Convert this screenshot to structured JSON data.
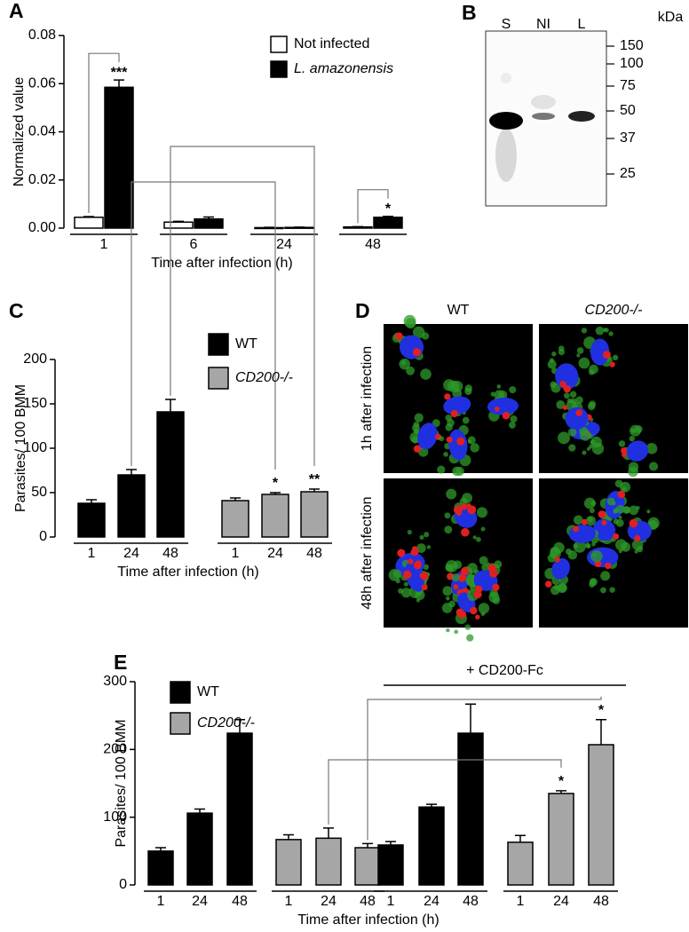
{
  "chart_data": [
    {
      "type": "bar",
      "panel_label": "A",
      "y_label": "Normalized value",
      "x_label": "Time after infection (h)",
      "categories": [
        "1",
        "6",
        "24",
        "48"
      ],
      "series": [
        {
          "name": "Not infected",
          "color": "#ffffff",
          "values": [
            0.0045,
            0.0025,
            0.0002,
            0.0005
          ],
          "errors": [
            0.0003,
            0.0003,
            0.0001,
            0.0001
          ]
        },
        {
          "name": "L. amazonensis",
          "color": "#000000",
          "values": [
            0.0585,
            0.0038,
            0.0003,
            0.0045
          ],
          "errors": [
            0.003,
            0.0008,
            0.0001,
            0.0004
          ],
          "significance": [
            "***",
            null,
            null,
            "*"
          ]
        }
      ],
      "ylim": [
        0,
        0.08
      ],
      "yticks": [
        {
          "value": 0,
          "label": "0.00"
        },
        0.02,
        0.04,
        0.06,
        0.08
      ],
      "legend_position": "upper right"
    },
    {
      "type": "block-bar",
      "panel_label": "C",
      "y_label": "Parasites/ 100 BMM",
      "x_label": "Time after infection (h)",
      "categories": [
        "1",
        "24",
        "48"
      ],
      "series": [
        {
          "color": "#000000",
          "values": [
            38,
            70,
            141
          ],
          "errors": [
            4,
            6,
            14
          ],
          "significance": [
            null,
            null,
            null
          ]
        },
        {
          "color": "#a6a6a6",
          "values": [
            41,
            48,
            51
          ],
          "errors": [
            3,
            2,
            3
          ],
          "significance": [
            null,
            "*",
            "**"
          ]
        }
      ],
      "legend": [
        {
          "name": "WT",
          "color": "#000000"
        },
        {
          "name": "CD200-/-",
          "color": "#a6a6a6"
        }
      ],
      "ylim": [
        0,
        200
      ],
      "yticks": [
        0,
        50,
        100,
        150,
        200
      ]
    },
    {
      "type": "block-bar",
      "panel_label": "E",
      "y_label": "Parasites/ 100 BMM",
      "x_label": "Time after infection (h)",
      "group_annotation": "+ CD200-Fc",
      "categories": [
        "1",
        "24",
        "48"
      ],
      "series": [
        {
          "color": "#000000",
          "values": [
            50,
            106,
            224
          ],
          "errors": [
            5,
            6,
            20
          ],
          "significance": [
            null,
            null,
            null
          ]
        },
        {
          "color": "#a6a6a6",
          "values": [
            67,
            69,
            55
          ],
          "errors": [
            7,
            15,
            6
          ],
          "significance": [
            null,
            null,
            null
          ]
        },
        {
          "color": "#000000",
          "values": [
            59,
            115,
            224
          ],
          "errors": [
            5,
            4,
            43
          ],
          "significance": [
            null,
            null,
            null
          ]
        },
        {
          "color": "#a6a6a6",
          "values": [
            63,
            135,
            207
          ],
          "errors": [
            10,
            4,
            37
          ],
          "significance": [
            null,
            "*",
            "*"
          ]
        }
      ],
      "legend": [
        {
          "name": "WT",
          "color": "#000000"
        },
        {
          "name": "CD200-/-",
          "color": "#a6a6a6"
        }
      ],
      "ylim": [
        0,
        300
      ],
      "yticks": [
        0,
        100,
        200,
        300
      ]
    }
  ],
  "blot": {
    "panel_label": "B",
    "lanes": [
      "S",
      "NI",
      "L"
    ],
    "unit": "kDa",
    "markers": [
      150,
      100,
      75,
      50,
      37,
      25
    ]
  },
  "micrographs": {
    "panel_label": "D",
    "columns": [
      "WT",
      "CD200-/-"
    ],
    "rows": [
      "1h after infection",
      "48h after infection"
    ]
  }
}
